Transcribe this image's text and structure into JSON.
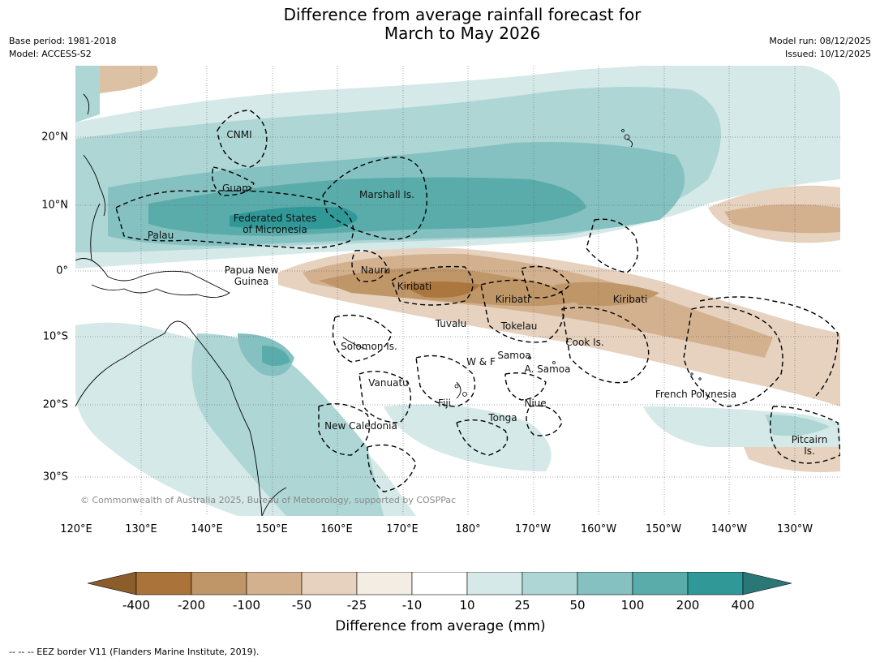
{
  "title": {
    "line1": "Difference from average rainfall forecast for",
    "line2": "March to May 2026"
  },
  "meta_left": {
    "base_period": "Base period: 1981-2018",
    "model": "Model: ACCESS-S2"
  },
  "meta_right": {
    "model_run": "Model run: 08/12/2025",
    "issued": "Issued: 10/12/2025"
  },
  "map": {
    "lon_labels": [
      "120°E",
      "130°E",
      "140°E",
      "150°E",
      "160°E",
      "170°E",
      "180°",
      "170°W",
      "160°W",
      "150°W",
      "140°W",
      "130°W"
    ],
    "lat_labels": [
      "20°N",
      "10°N",
      "0°",
      "10°S",
      "20°S",
      "30°S"
    ],
    "copyright": "© Commonwealth of Australia 2025, Bureau of Meteorology, supported by COSPPac",
    "regions": [
      {
        "name": "CNMI"
      },
      {
        "name": "Guam"
      },
      {
        "name": "Marshall Is."
      },
      {
        "name": "Federated States\nof Micronesia"
      },
      {
        "name": "Palau"
      },
      {
        "name": "Papua New\nGuinea"
      },
      {
        "name": "Nauru"
      },
      {
        "name": "Kiribati"
      },
      {
        "name": "Kiribati"
      },
      {
        "name": "Kiribati"
      },
      {
        "name": "Tuvalu"
      },
      {
        "name": "Tokelau"
      },
      {
        "name": "Cook Is."
      },
      {
        "name": "Solomon Is."
      },
      {
        "name": "Samoa"
      },
      {
        "name": "W & F"
      },
      {
        "name": "A. Samoa"
      },
      {
        "name": "Vanuatu"
      },
      {
        "name": "Fiji"
      },
      {
        "name": "Niue"
      },
      {
        "name": "Tonga"
      },
      {
        "name": "French Polynesia"
      },
      {
        "name": "New Caledonia"
      },
      {
        "name": "Pitcairn\nIs."
      }
    ]
  },
  "colorbar": {
    "title": "Difference from average (mm)",
    "ticks": [
      "-400",
      "-200",
      "-100",
      "-50",
      "-25",
      "-10",
      "10",
      "25",
      "50",
      "100",
      "200",
      "400"
    ],
    "colors": [
      "#a9733a",
      "#bf9668",
      "#d3b18f",
      "#e6d2bf",
      "#f3ede4",
      "#ffffff",
      "#d4e9e8",
      "#aed6d5",
      "#85c1c1",
      "#5aacab",
      "#319898"
    ],
    "under_color": "#8c5c2b",
    "over_color": "#2b7777"
  },
  "legend": {
    "eez_note": "--  --  -- EEZ border V11 (Flanders Marine Institute, 2019)."
  }
}
